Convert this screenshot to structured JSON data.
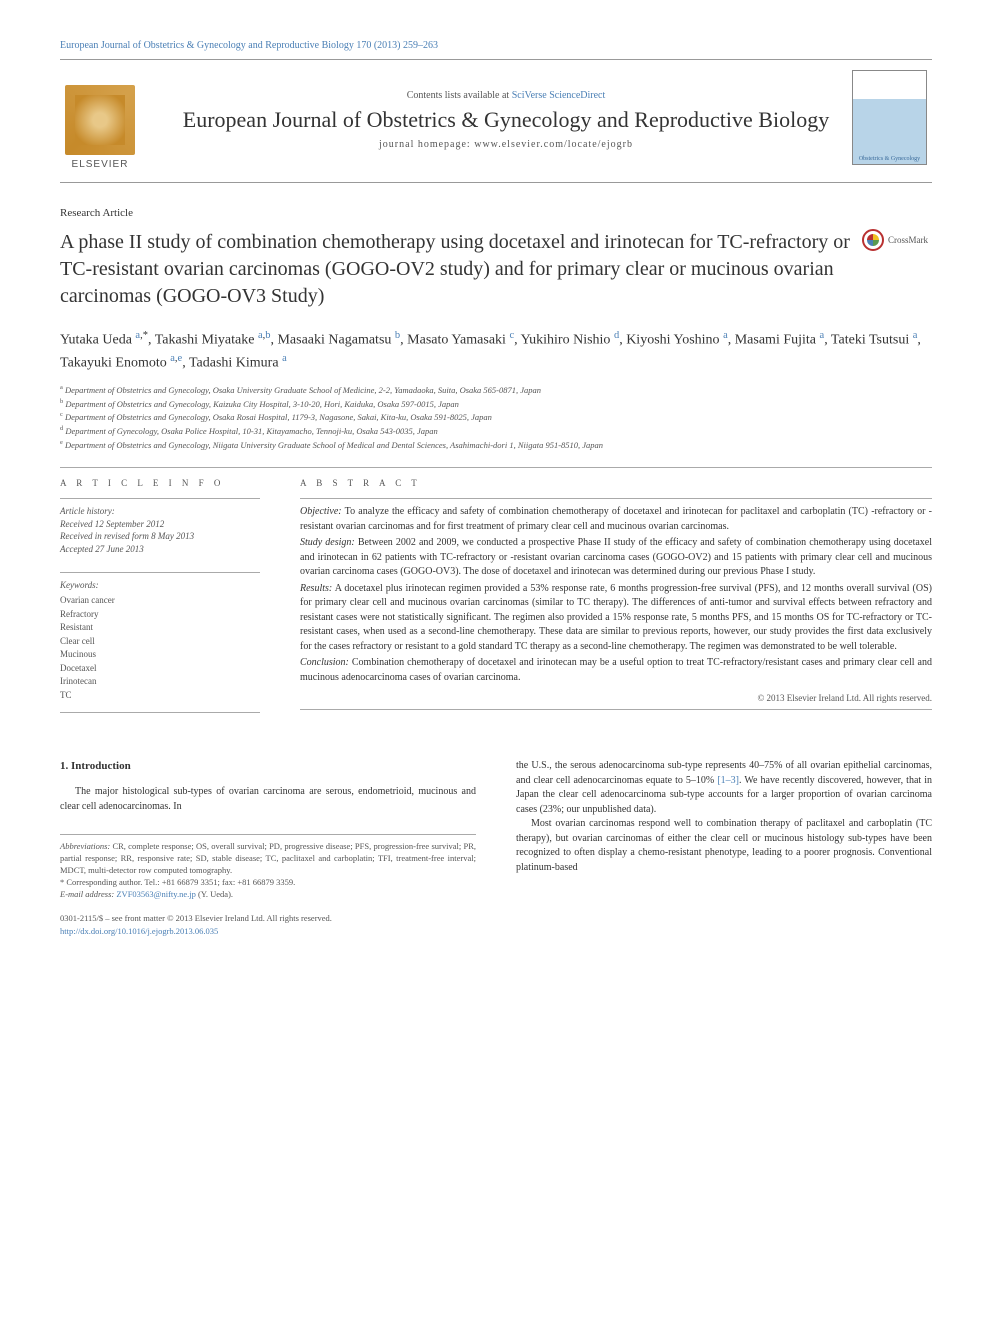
{
  "header_link": "European Journal of Obstetrics & Gynecology and Reproductive Biology 170 (2013) 259–263",
  "banner": {
    "contents_prefix": "Contents lists available at ",
    "contents_link": "SciVerse ScienceDirect",
    "journal": "European Journal of Obstetrics & Gynecology and Reproductive Biology",
    "homepage_prefix": "journal homepage: ",
    "homepage_url": "www.elsevier.com/locate/ejogrb",
    "elsevier": "ELSEVIER",
    "cover_caption": "Obstetrics & Gynecology"
  },
  "article_type": "Research Article",
  "title": "A phase II study of combination chemotherapy using docetaxel and irinotecan for TC-refractory or TC-resistant ovarian carcinomas (GOGO-OV2 study) and for primary clear or mucinous ovarian carcinomas (GOGO-OV3 Study)",
  "crossmark": "CrossMark",
  "authors_html": "Yutaka Ueda <sup><a href=\"#\">a</a>,*</sup>, Takashi Miyatake <sup><a href=\"#\">a</a>,<a href=\"#\">b</a></sup>, Masaaki Nagamatsu <sup><a href=\"#\">b</a></sup>, Masato Yamasaki <sup><a href=\"#\">c</a></sup>, Yukihiro Nishio <sup><a href=\"#\">d</a></sup>, Kiyoshi Yoshino <sup><a href=\"#\">a</a></sup>, Masami Fujita <sup><a href=\"#\">a</a></sup>, Tateki Tsutsui <sup><a href=\"#\">a</a></sup>, Takayuki Enomoto <sup><a href=\"#\">a</a>,<a href=\"#\">e</a></sup>, Tadashi Kimura <sup><a href=\"#\">a</a></sup>",
  "affiliations": [
    "a Department of Obstetrics and Gynecology, Osaka University Graduate School of Medicine, 2-2, Yamadaoka, Suita, Osaka 565-0871, Japan",
    "b Department of Obstetrics and Gynecology, Kaizuka City Hospital, 3-10-20, Hori, Kaiduka, Osaka 597-0015, Japan",
    "c Department of Obstetrics and Gynecology, Osaka Rosai Hospital, 1179-3, Nagasone, Sakai, Kita-ku, Osaka 591-8025, Japan",
    "d Department of Gynecology, Osaka Police Hospital, 10-31, Kitayamacho, Tennoji-ku, Osaka 543-0035, Japan",
    "e Department of Obstetrics and Gynecology, Niigata University Graduate School of Medical and Dental Sciences, Asahimachi-dori 1, Niigata 951-8510, Japan"
  ],
  "info_heading": "A R T I C L E   I N F O",
  "abstract_heading": "A B S T R A C T",
  "history": {
    "label": "Article history:",
    "received": "Received 12 September 2012",
    "revised": "Received in revised form 8 May 2013",
    "accepted": "Accepted 27 June 2013"
  },
  "keywords": {
    "label": "Keywords:",
    "items": [
      "Ovarian cancer",
      "Refractory",
      "Resistant",
      "Clear cell",
      "Mucinous",
      "Docetaxel",
      "Irinotecan",
      "TC"
    ]
  },
  "abstract": {
    "objective": "To analyze the efficacy and safety of combination chemotherapy of docetaxel and irinotecan for paclitaxel and carboplatin (TC) -refractory or -resistant ovarian carcinomas and for first treatment of primary clear cell and mucinous ovarian carcinomas.",
    "study_design": "Between 2002 and 2009, we conducted a prospective Phase II study of the efficacy and safety of combination chemotherapy using docetaxel and irinotecan in 62 patients with TC-refractory or -resistant ovarian carcinoma cases (GOGO-OV2) and 15 patients with primary clear cell and mucinous ovarian carcinoma cases (GOGO-OV3). The dose of docetaxel and irinotecan was determined during our previous Phase I study.",
    "results": "A docetaxel plus irinotecan regimen provided a 53% response rate, 6 months progression-free survival (PFS), and 12 months overall survival (OS) for primary clear cell and mucinous ovarian carcinomas (similar to TC therapy). The differences of anti-tumor and survival effects between refractory and resistant cases were not statistically significant. The regimen also provided a 15% response rate, 5 months PFS, and 15 months OS for TC-refractory or TC-resistant cases, when used as a second-line chemotherapy. These data are similar to previous reports, however, our study provides the first data exclusively for the cases refractory or resistant to a gold standard TC therapy as a second-line chemotherapy. The regimen was demonstrated to be well tolerable.",
    "conclusion": "Combination chemotherapy of docetaxel and irinotecan may be a useful option to treat TC-refractory/resistant cases and primary clear cell and mucinous adenocarcinoma cases of ovarian carcinoma."
  },
  "copyright": "© 2013 Elsevier Ireland Ltd. All rights reserved.",
  "section1_heading": "1. Introduction",
  "body": {
    "left_p1": "The major histological sub-types of ovarian carcinoma are serous, endometrioid, mucinous and clear cell adenocarcinomas. In",
    "right_p1_a": "the U.S., the serous adenocarcinoma sub-type represents 40–75% of all ovarian epithelial carcinomas, and clear cell adenocarcinomas equate to 5–10% ",
    "right_p1_ref": "[1–3]",
    "right_p1_b": ". We have recently discovered, however, that in Japan the clear cell adenocarcinoma sub-type accounts for a larger proportion of ovarian carcinoma cases (23%; our unpublished data).",
    "right_p2": "Most ovarian carcinomas respond well to combination therapy of paclitaxel and carboplatin (TC therapy), but ovarian carcinomas of either the clear cell or mucinous histology sub-types have been recognized to often display a chemo-resistant phenotype, leading to a poorer prognosis. Conventional platinum-based"
  },
  "footnotes": {
    "abbrev_lbl": "Abbreviations:",
    "abbrev": " CR, complete response; OS, overall survival; PD, progressive disease; PFS, progression-free survival; PR, partial response; RR, responsive rate; SD, stable disease; TC, paclitaxel and carboplatin; TFI, treatment-free interval; MDCT, multi-detector row computed tomography.",
    "corr": "* Corresponding author. Tel.: +81 66879 3351; fax: +81 66879 3359.",
    "email_lbl": "E-mail address:",
    "email": "ZVF03563@nifty.ne.jp",
    "email_name": " (Y. Ueda)."
  },
  "pub": {
    "front": "0301-2115/$ – see front matter © 2013 Elsevier Ireland Ltd. All rights reserved.",
    "doi": "http://dx.doi.org/10.1016/j.ejogrb.2013.06.035"
  },
  "labels": {
    "objective": "Objective:",
    "study_design": "Study design:",
    "results": "Results:",
    "conclusion": "Conclusion:"
  },
  "colors": {
    "link": "#4a7fb5",
    "text": "#222",
    "muted": "#555",
    "rule": "#aaa"
  }
}
